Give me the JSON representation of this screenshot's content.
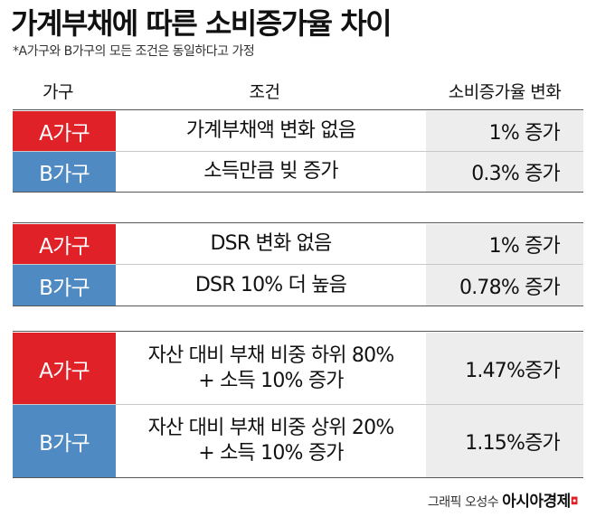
{
  "title": "가계부채에 따른 소비증가율 차이",
  "subtitle": "*A가구와 B가구의 모든 조건은 동일하다고 가정",
  "headers": {
    "type": "가구",
    "condition": "조건",
    "result": "소비증가율 변화"
  },
  "groups": [
    {
      "rows": [
        {
          "type": "A가구",
          "condition": [
            "가계부채액 변화 없음"
          ],
          "result": "1% 증가"
        },
        {
          "type": "B가구",
          "condition": [
            "소득만큼 빚 증가"
          ],
          "result": "0.3% 증가"
        }
      ]
    },
    {
      "rows": [
        {
          "type": "A가구",
          "condition": [
            "DSR 변화 없음"
          ],
          "result": "1% 증가"
        },
        {
          "type": "B가구",
          "condition": [
            "DSR 10% 더 높음"
          ],
          "result": "0.78% 증가"
        }
      ]
    },
    {
      "rows": [
        {
          "type": "A가구",
          "condition": [
            "자산 대비 부채 비중 하위 80%",
            "+ 소득 10% 증가"
          ],
          "result": "1.47%증가"
        },
        {
          "type": "B가구",
          "condition": [
            "자산 대비 부채 비중 상위 20%",
            "+ 소득 10% 증가"
          ],
          "result": "1.15%증가"
        }
      ]
    }
  ],
  "credit": {
    "prefix": "그래픽 오성수",
    "brand": "아시아경제",
    "mark": "◘"
  },
  "colors": {
    "a_row": "#e02127",
    "b_row": "#4f8ac3",
    "result_bg": "#ededed"
  }
}
